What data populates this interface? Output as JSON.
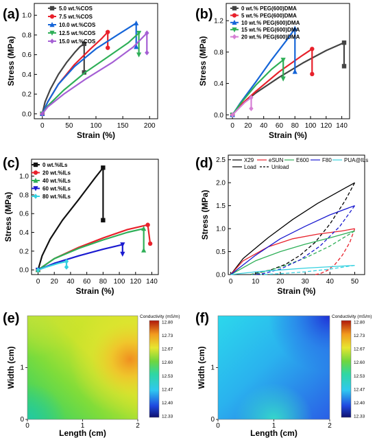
{
  "chart_data": [
    {
      "panel": "(a)",
      "type": "line",
      "xlabel": "Strain (%)",
      "ylabel": "Stress (MPa)",
      "xlim": [
        -15,
        215
      ],
      "ylim": [
        -0.05,
        1.12
      ],
      "xticks": [
        0,
        50,
        100,
        150,
        200
      ],
      "yticks": [
        0.0,
        0.2,
        0.4,
        0.6,
        0.8,
        1.0
      ],
      "ytick_decimals": 1,
      "legend_position": "top-left",
      "series": [
        {
          "name": "5.0 wt.%COS",
          "color": "#444444",
          "marker": "square",
          "x": [
            0,
            5,
            15,
            30,
            45,
            60,
            70,
            78,
            78
          ],
          "y": [
            0,
            0.12,
            0.25,
            0.4,
            0.52,
            0.62,
            0.68,
            0.71,
            0.42
          ]
        },
        {
          "name": "7.5 wt.%COS",
          "color": "#e8212b",
          "marker": "circle",
          "x": [
            0,
            10,
            30,
            60,
            90,
            110,
            122,
            122
          ],
          "y": [
            0,
            0.12,
            0.3,
            0.5,
            0.66,
            0.76,
            0.83,
            0.67
          ]
        },
        {
          "name": "10.0 wt.%COS",
          "color": "#1565d8",
          "marker": "triangle-up",
          "x": [
            0,
            10,
            30,
            60,
            100,
            140,
            175,
            175
          ],
          "y": [
            0,
            0.12,
            0.3,
            0.48,
            0.66,
            0.8,
            0.92,
            0.68
          ]
        },
        {
          "name": "12.5 wt.%COS",
          "color": "#2eaf57",
          "marker": "triangle-down",
          "x": [
            0,
            10,
            40,
            80,
            120,
            160,
            180,
            180
          ],
          "y": [
            0,
            0.08,
            0.24,
            0.42,
            0.57,
            0.72,
            0.82,
            0.6
          ]
        },
        {
          "name": "15.0 wt.%COS",
          "color": "#a55fd4",
          "marker": "diamond",
          "x": [
            0,
            10,
            40,
            80,
            130,
            170,
            195,
            195
          ],
          "y": [
            0,
            0.07,
            0.2,
            0.35,
            0.52,
            0.68,
            0.82,
            0.62
          ]
        }
      ]
    },
    {
      "panel": "(b)",
      "type": "line",
      "xlabel": "Strain (%)",
      "ylabel": "Stress (MPa)",
      "xlim": [
        -8,
        150
      ],
      "ylim": [
        -0.05,
        1.42
      ],
      "xticks": [
        0,
        20,
        40,
        60,
        80,
        100,
        120,
        140
      ],
      "yticks": [
        0.0,
        0.4,
        0.8,
        1.2
      ],
      "ytick_decimals": 1,
      "legend_position": "top-left",
      "series": [
        {
          "name": "0 wt.% PEG(600)DMA",
          "color": "#444444",
          "marker": "square",
          "x": [
            0,
            10,
            30,
            60,
            90,
            120,
            143,
            143
          ],
          "y": [
            0,
            0.12,
            0.28,
            0.48,
            0.66,
            0.82,
            0.92,
            0.62
          ]
        },
        {
          "name": "5 wt.% PEG(600)DMA",
          "color": "#e8212b",
          "marker": "circle",
          "x": [
            0,
            10,
            30,
            60,
            90,
            102,
            102
          ],
          "y": [
            0,
            0.12,
            0.3,
            0.55,
            0.76,
            0.84,
            0.52
          ]
        },
        {
          "name": "10 wt.% PEG(600)DMA",
          "color": "#1565d8",
          "marker": "triangle-up",
          "x": [
            0,
            10,
            30,
            50,
            70,
            80,
            80
          ],
          "y": [
            0,
            0.15,
            0.42,
            0.7,
            0.96,
            1.1,
            0.55
          ]
        },
        {
          "name": "15 wt.% PEG(600)DMA",
          "color": "#2eaf57",
          "marker": "triangle-down",
          "x": [
            0,
            10,
            30,
            50,
            65,
            65
          ],
          "y": [
            0,
            0.14,
            0.38,
            0.58,
            0.7,
            0.46
          ]
        },
        {
          "name": "20 wt.% PEG(600)DMA",
          "color": "#d67fd4",
          "marker": "diamond",
          "x": [
            0,
            8,
            16,
            24,
            24
          ],
          "y": [
            0,
            0.08,
            0.16,
            0.22,
            0.08
          ]
        }
      ]
    },
    {
      "panel": "(c)",
      "type": "line",
      "xlabel": "Strain (%)",
      "ylabel": "Stress (MPa)",
      "xlim": [
        -8,
        148
      ],
      "ylim": [
        -0.05,
        1.18
      ],
      "xticks": [
        0,
        20,
        40,
        60,
        80,
        100,
        120,
        140
      ],
      "yticks": [
        0.0,
        0.2,
        0.4,
        0.6,
        0.8,
        1.0
      ],
      "ytick_decimals": 1,
      "legend_position": "top-left",
      "series": [
        {
          "name": "0 wt.%ILs",
          "color": "#111111",
          "marker": "square",
          "x": [
            0,
            5,
            15,
            30,
            50,
            70,
            80,
            80
          ],
          "y": [
            0,
            0.15,
            0.33,
            0.53,
            0.75,
            0.98,
            1.09,
            0.53
          ]
        },
        {
          "name": "20 wt.%ILs",
          "color": "#e8212b",
          "marker": "circle",
          "x": [
            0,
            20,
            50,
            80,
            110,
            135,
            138
          ],
          "y": [
            0,
            0.12,
            0.24,
            0.34,
            0.43,
            0.48,
            0.28
          ]
        },
        {
          "name": "40 wt.%ILs",
          "color": "#2eaf57",
          "marker": "triangle-up",
          "x": [
            0,
            20,
            50,
            80,
            110,
            130,
            130
          ],
          "y": [
            0,
            0.12,
            0.23,
            0.32,
            0.4,
            0.44,
            0.21
          ]
        },
        {
          "name": "60 wt.%ILs",
          "color": "#1a1ad0",
          "marker": "triangle-down",
          "x": [
            0,
            20,
            50,
            80,
            104,
            104
          ],
          "y": [
            0,
            0.07,
            0.15,
            0.22,
            0.27,
            0.17
          ]
        },
        {
          "name": "80 wt.%ILs",
          "color": "#34d1e0",
          "marker": "diamond",
          "x": [
            0,
            10,
            25,
            35,
            35
          ],
          "y": [
            0,
            0.03,
            0.07,
            0.09,
            0.03
          ]
        }
      ]
    },
    {
      "panel": "(d)",
      "type": "line",
      "xlabel": "Strain (%)",
      "ylabel": "Stress (MPa)",
      "xlim": [
        -1,
        54
      ],
      "ylim": [
        0,
        2.6
      ],
      "xticks": [
        0,
        10,
        20,
        30,
        40,
        50
      ],
      "yticks": [
        0.0,
        0.5,
        1.0,
        1.5,
        2.0,
        2.5
      ],
      "ytick_decimals": 1,
      "legend_position": "top",
      "legend": [
        {
          "name": "X29",
          "color": "#000000",
          "dash": false
        },
        {
          "name": "eSUN",
          "color": "#e8212b",
          "dash": false
        },
        {
          "name": "E600",
          "color": "#2eaf57",
          "dash": false
        },
        {
          "name": "F80",
          "color": "#1a1ad0",
          "dash": false
        },
        {
          "name": "PUA@ILs",
          "color": "#34d1e0",
          "dash": false
        },
        {
          "name": "Load",
          "color": "#000000",
          "dash": false
        },
        {
          "name": "Unload",
          "color": "#000000",
          "dash": true
        }
      ],
      "series": [
        {
          "name": "X29 Load",
          "color": "#000000",
          "dash": false,
          "x": [
            0,
            5,
            15,
            25,
            35,
            45,
            50
          ],
          "y": [
            0,
            0.35,
            0.8,
            1.2,
            1.55,
            1.85,
            2.0
          ]
        },
        {
          "name": "X29 Unload",
          "color": "#000000",
          "dash": true,
          "x": [
            50,
            46,
            40,
            34,
            28,
            22,
            16,
            10,
            8
          ],
          "y": [
            2.0,
            1.6,
            1.1,
            0.7,
            0.42,
            0.22,
            0.1,
            0.03,
            0
          ]
        },
        {
          "name": "eSUN Load",
          "color": "#e8212b",
          "dash": false,
          "x": [
            0,
            5,
            15,
            25,
            35,
            45,
            50
          ],
          "y": [
            0,
            0.3,
            0.6,
            0.78,
            0.88,
            0.95,
            1.0
          ]
        },
        {
          "name": "eSUN Unload",
          "color": "#e8212b",
          "dash": true,
          "x": [
            50,
            48,
            45,
            42,
            39,
            36,
            34
          ],
          "y": [
            1.0,
            0.7,
            0.42,
            0.22,
            0.09,
            0.02,
            0
          ]
        },
        {
          "name": "E600 Load",
          "color": "#2eaf57",
          "dash": false,
          "x": [
            0,
            10,
            20,
            30,
            40,
            50
          ],
          "y": [
            0,
            0.3,
            0.5,
            0.66,
            0.8,
            0.95
          ]
        },
        {
          "name": "E600 Unload",
          "color": "#2eaf57",
          "dash": true,
          "x": [
            50,
            40,
            30,
            20,
            12,
            8
          ],
          "y": [
            0.95,
            0.62,
            0.36,
            0.16,
            0.04,
            0
          ]
        },
        {
          "name": "F80 Load",
          "color": "#1a1ad0",
          "dash": false,
          "x": [
            0,
            10,
            20,
            30,
            40,
            50
          ],
          "y": [
            0,
            0.42,
            0.78,
            1.05,
            1.3,
            1.5
          ]
        },
        {
          "name": "F80 Unload",
          "color": "#1a1ad0",
          "dash": true,
          "x": [
            50,
            44,
            36,
            28,
            20,
            13,
            9
          ],
          "y": [
            1.5,
            1.05,
            0.62,
            0.32,
            0.12,
            0.02,
            0
          ]
        },
        {
          "name": "PUA@ILs Load",
          "color": "#34d1e0",
          "dash": false,
          "x": [
            0,
            10,
            20,
            30,
            40,
            50
          ],
          "y": [
            0,
            0.06,
            0.1,
            0.14,
            0.17,
            0.2
          ]
        },
        {
          "name": "PUA@ILs Unload",
          "color": "#34d1e0",
          "dash": true,
          "x": [
            50,
            40,
            30,
            20,
            12
          ],
          "y": [
            0.2,
            0.12,
            0.06,
            0.02,
            0
          ]
        }
      ]
    },
    {
      "panel": "(e)",
      "type": "heatmap",
      "xlabel": "Length (cm)",
      "ylabel": "Width (cm)",
      "xlim": [
        0,
        2
      ],
      "ylim": [
        0,
        2
      ],
      "xticks": [
        0,
        1,
        2
      ],
      "yticks": [
        0,
        1
      ],
      "colorbar_title": "Conductivity (mS/m)",
      "colorbar_ticks": [
        "12.80",
        "12.73",
        "12.67",
        "12.60",
        "12.53",
        "12.47",
        "12.40",
        "12.33"
      ]
    },
    {
      "panel": "(f)",
      "type": "heatmap",
      "xlabel": "Length (cm)",
      "ylabel": "Width (cm)",
      "xlim": [
        0,
        2
      ],
      "ylim": [
        0,
        2
      ],
      "xticks": [
        0,
        1,
        2
      ],
      "yticks": [
        0,
        1
      ],
      "colorbar_title": "Conductivity (mS/m)",
      "colorbar_ticks": [
        "12.80",
        "12.73",
        "12.67",
        "12.60",
        "12.53",
        "12.47",
        "12.40",
        "12.33"
      ]
    }
  ]
}
